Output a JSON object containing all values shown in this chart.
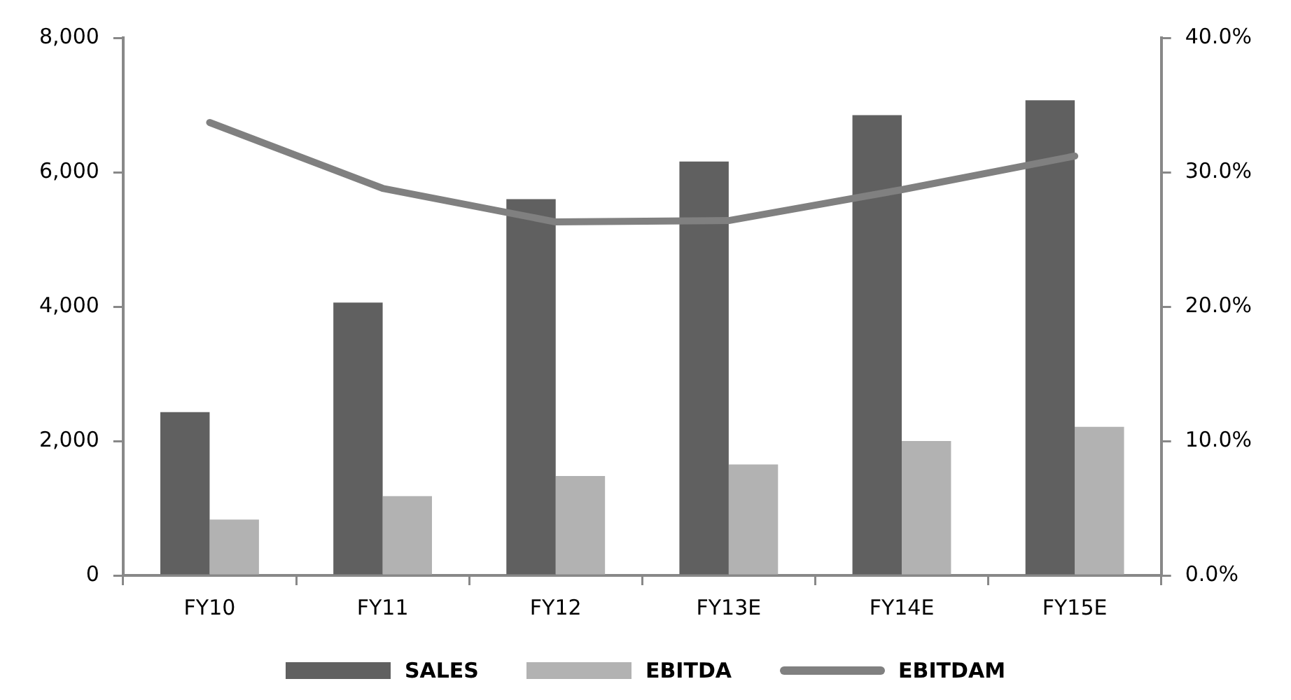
{
  "chart_data": {
    "type": "bar",
    "categories": [
      "FY10",
      "FY11",
      "FY12",
      "FY13E",
      "FY14E",
      "FY15E"
    ],
    "series": [
      {
        "name": "SALES",
        "color": "#606060",
        "values": [
          2430,
          4060,
          5600,
          6160,
          6850,
          7070
        ]
      },
      {
        "name": "EBITDA",
        "color": "#b2b2b2",
        "values": [
          830,
          1180,
          1480,
          1650,
          2000,
          2210
        ]
      },
      {
        "name": "EBITDAM",
        "type": "line",
        "axis": "y2",
        "color": "#808080",
        "values": [
          33.7,
          28.8,
          26.3,
          26.4,
          28.7,
          31.2
        ]
      }
    ],
    "ylim": [
      0,
      8000
    ],
    "yticks": [
      0,
      {
        "value": 2000,
        "label": "2,000"
      },
      {
        "value": 4000,
        "label": "4,000"
      },
      {
        "value": 6000,
        "label": "6,000"
      },
      {
        "value": 8000,
        "label": "8,000"
      }
    ],
    "y2lim": [
      0,
      40
    ],
    "y2ticks": [
      {
        "value": 0,
        "label": "0.0%"
      },
      {
        "value": 10,
        "label": "10.0%"
      },
      {
        "value": 20,
        "label": "20.0%"
      },
      {
        "value": 30,
        "label": "30.0%"
      },
      {
        "value": 40,
        "label": "40.0%"
      }
    ],
    "grid": false,
    "legend": "bottom",
    "marker": "none",
    "line_style": "solid"
  }
}
